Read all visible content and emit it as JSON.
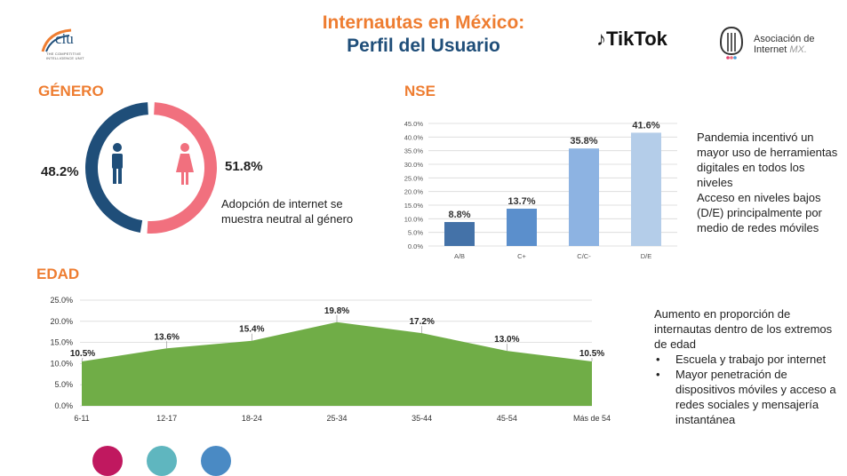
{
  "header": {
    "title_line1": "Internautas en México:",
    "title_line2": "Perfil del Usuario"
  },
  "logos": {
    "ciu_name": "ciu",
    "ciu_tagline": "THE COMPETITIVE INTELLIGENCE UNIT",
    "tiktok_name": "TikTok",
    "asociacion_line1": "Asociación de",
    "asociacion_line2": "Internet",
    "asociacion_suffix": "MX."
  },
  "colors": {
    "orange": "#ee7d31",
    "navy": "#1f4e79",
    "pink": "#f1707e",
    "green": "#70ad47",
    "nse_bar1": "#4472a8",
    "nse_bar2": "#5b8fcc",
    "nse_bar3": "#8db3e2",
    "nse_bar4": "#b4cde9"
  },
  "genero": {
    "heading": "GÉNERO",
    "male_pct_label": "48.2%",
    "female_pct_label": "51.8%",
    "male_icon": "male-person-icon",
    "female_icon": "female-person-icon",
    "note": "Adopción de internet se muestra neutral al género"
  },
  "nse": {
    "heading": "NSE",
    "notes": [
      "Pandemia incentivó un mayor uso de herramientas digitales en todos los niveles",
      "Acceso en niveles bajos (D/E) principalmente por medio de redes móviles"
    ]
  },
  "edad": {
    "heading": "EDAD",
    "note_intro": "Aumento en proporción de internautas dentro de los extremos de edad",
    "bullets": [
      "Escuela y trabajo por internet",
      "Mayor penetración de dispositivos móviles y acceso a redes sociales y mensajería instantánea"
    ],
    "bullet_char": "•"
  },
  "chart_data": [
    {
      "type": "pie",
      "labels": [
        "48.2%",
        "51.8%"
      ],
      "values": [
        48.2,
        51.8
      ],
      "colors": [
        "#1f4e79",
        "#f1707e"
      ]
    },
    {
      "type": "bar",
      "categories": [
        "A/B",
        "C+",
        "C/C-",
        "D/E"
      ],
      "values": [
        8.8,
        13.7,
        35.8,
        41.6
      ],
      "data_labels": [
        "8.8%",
        "13.7%",
        "35.8%",
        "41.6%"
      ],
      "yticks": [
        "0.0%",
        "5.0%",
        "10.0%",
        "15.0%",
        "20.0%",
        "25.0%",
        "30.0%",
        "35.0%",
        "40.0%",
        "45.0%"
      ],
      "ylim": [
        0,
        45
      ],
      "grid": true,
      "colors": [
        "#4472a8",
        "#5b8fcc",
        "#8db3e2",
        "#b4cde9"
      ]
    },
    {
      "type": "area",
      "categories": [
        "6-11",
        "12-17",
        "18-24",
        "25-34",
        "35-44",
        "45-54",
        "Más de 54"
      ],
      "values": [
        10.5,
        13.6,
        15.4,
        19.8,
        17.2,
        13.0,
        10.5
      ],
      "data_labels": [
        "10.5%",
        "13.6%",
        "15.4%",
        "19.8%",
        "17.2%",
        "13.0%",
        "10.5%"
      ],
      "yticks": [
        "0.0%",
        "5.0%",
        "10.0%",
        "15.0%",
        "20.0%",
        "25.0%"
      ],
      "ylim": [
        0,
        25
      ],
      "grid": true,
      "color": "#70ad47"
    }
  ]
}
